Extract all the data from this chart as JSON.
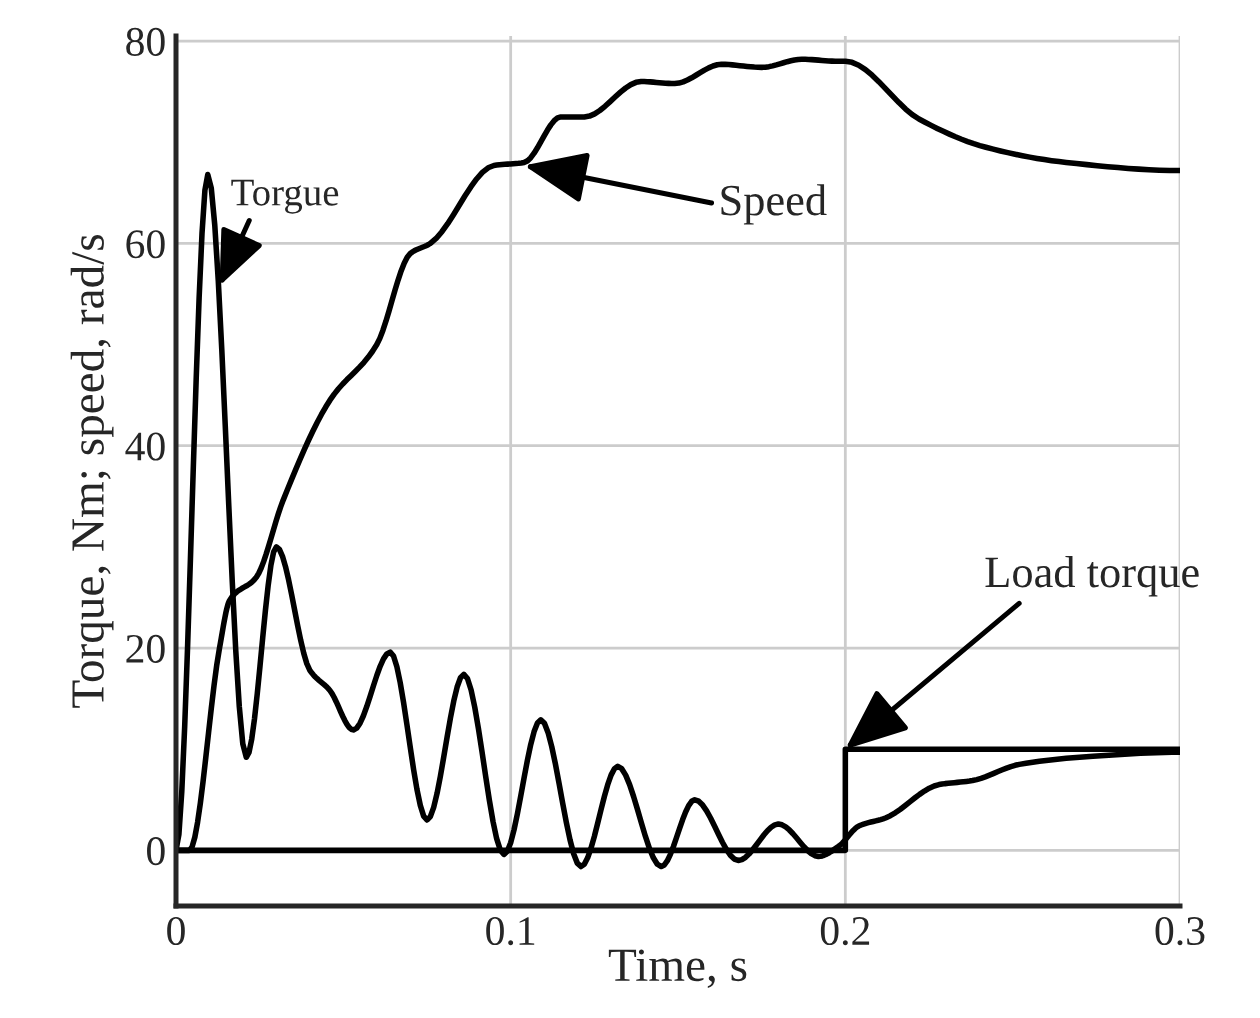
{
  "chart_data": {
    "type": "line",
    "xlabel": "Time, s",
    "ylabel": "Torque, Nm; speed, rad/s",
    "xlim": [
      0,
      0.3
    ],
    "ylim": [
      -5.5,
      80.5
    ],
    "xticks": [
      0,
      0.1,
      0.2,
      0.3
    ],
    "yticks": [
      0,
      20,
      40,
      60,
      80
    ],
    "grid": true,
    "legend": false,
    "series": [
      {
        "color": "#000000",
        "x": [
          0,
          0.004,
          0.013,
          0.016,
          0.024,
          0.032,
          0.046,
          0.06,
          0.07,
          0.076,
          0.095,
          0.104,
          0.115,
          0.122,
          0.139,
          0.149,
          0.163,
          0.175,
          0.187,
          0.198,
          0.2,
          0.222,
          0.242,
          0.266,
          0.3
        ],
        "values": [
          0,
          0,
          20,
          24.7,
          27,
          34.6,
          44.5,
          50,
          59,
          60,
          67.7,
          68,
          72.5,
          72.5,
          76,
          75.8,
          77.7,
          77.4,
          78.2,
          78,
          78,
          72.3,
          69.5,
          68,
          67.2
        ]
      },
      {
        "color": "#000000",
        "x": [
          0,
          0.0095,
          0.021,
          0.03,
          0.04,
          0.046,
          0.053,
          0.064,
          0.075,
          0.086,
          0.098,
          0.109,
          0.121,
          0.132,
          0.145,
          0.155,
          0.168,
          0.18,
          0.192,
          0.198,
          0.204,
          0.212,
          0.228,
          0.238,
          0.252,
          0.274,
          0.3
        ],
        "values": [
          0,
          66.8,
          9.2,
          30,
          17.8,
          15.8,
          11.9,
          19.6,
          3,
          17.4,
          -0.4,
          12.9,
          -1.6,
          8.3,
          -1.6,
          5,
          -1,
          2.6,
          -0.6,
          0.4,
          2.4,
          3.2,
          6.5,
          6.9,
          8.5,
          9.3,
          9.7
        ]
      },
      {
        "color": "#000000",
        "x": [
          0,
          0.2,
          0.2,
          0.3
        ],
        "values": [
          0,
          0,
          10,
          10
        ]
      }
    ],
    "annotations": [
      {
        "text": "Torgue",
        "x": 0.013,
        "y": 55.8
      },
      {
        "text": "Speed",
        "x": 0.104,
        "y": 67.7
      },
      {
        "text": "Load torque",
        "x": 0.2,
        "y": 10
      }
    ]
  }
}
